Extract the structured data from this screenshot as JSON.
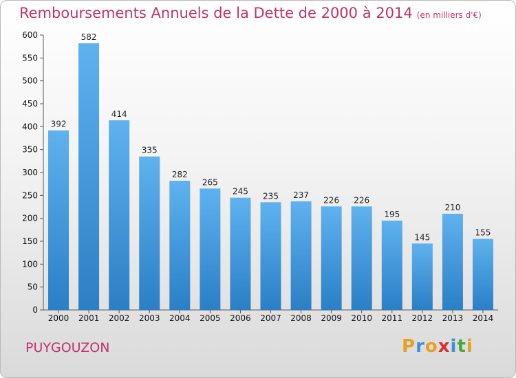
{
  "chart_data": {
    "type": "bar",
    "title": "Remboursements Annuels de la Dette de 2000 à 2014",
    "unit_label": "(en milliers d'€)",
    "categories": [
      "2000",
      "2001",
      "2002",
      "2003",
      "2004",
      "2005",
      "2006",
      "2007",
      "2008",
      "2009",
      "2010",
      "2011",
      "2012",
      "2013",
      "2014"
    ],
    "values": [
      392,
      582,
      414,
      335,
      282,
      265,
      245,
      235,
      237,
      226,
      226,
      195,
      145,
      210,
      155
    ],
    "ylim": [
      0,
      600
    ],
    "yticks": [
      0,
      50,
      100,
      150,
      200,
      250,
      300,
      350,
      400,
      450,
      500,
      550,
      600
    ],
    "xlabel": "",
    "ylabel": "",
    "grid": false,
    "bar_color": "#4ea6e6"
  },
  "footer": {
    "city": "PUYGOUZON",
    "logo_letters": [
      "P",
      "r",
      "o",
      "x",
      "i",
      "t",
      "i"
    ],
    "logo_colors": [
      "#e8a020",
      "#3e8fd6",
      "#e8a020",
      "#d9312c",
      "#3e8fd6",
      "#46a83b",
      "#e8a020"
    ]
  }
}
